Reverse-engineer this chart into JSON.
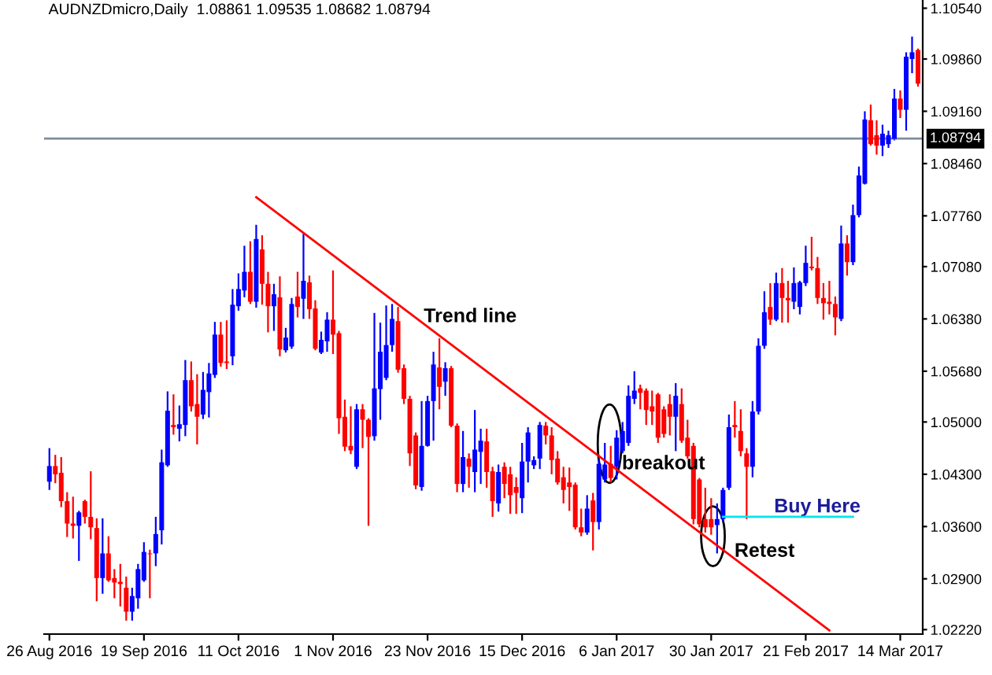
{
  "chart_data": {
    "type": "candlestick",
    "title": "AUDNZDmicro,Daily  1.08861 1.09535 1.08682 1.08794",
    "colors": [
      "#0000ff",
      "#ff0000",
      "#ff0000",
      "#ff0000",
      "#ff0000",
      "#0000ff",
      "#ff0000",
      "#ff0000",
      "#ff0000",
      "#0000ff",
      "#ff0000",
      "#ff0000",
      "#ff0000",
      "#ff0000",
      "#0000ff",
      "#0000ff",
      "#0000ff",
      "#ff0000",
      "#0000ff",
      "#0000ff",
      "#0000ff",
      "#ff0000",
      "#0000ff",
      "#0000ff",
      "#ff0000",
      "#ff0000",
      "#0000ff",
      "#0000ff",
      "#0000ff",
      "#ff0000",
      "#ff0000",
      "#0000ff",
      "#0000ff",
      "#0000ff",
      "#ff0000",
      "#0000ff",
      "#ff0000",
      "#ff0000",
      "#0000ff",
      "#ff0000",
      "#0000ff",
      "#0000ff",
      "#ff0000",
      "#0000ff",
      "#ff0000",
      "#ff0000",
      "#0000ff",
      "#0000ff",
      "#ff0000",
      "#ff0000",
      "#ff0000",
      "#ff0000",
      "#0000ff",
      "#ff0000",
      "#ff0000",
      "#0000ff",
      "#0000ff",
      "#0000ff",
      "#0000ff",
      "#ff0000",
      "#ff0000",
      "#ff0000",
      "#ff0000",
      "#0000ff",
      "#0000ff",
      "#0000ff",
      "#ff0000",
      "#0000ff",
      "#ff0000",
      "#ff0000",
      "#0000ff",
      "#ff0000",
      "#0000ff",
      "#0000ff",
      "#ff0000",
      "#ff0000",
      "#0000ff",
      "#ff0000",
      "#ff0000",
      "#ff0000",
      "#0000ff",
      "#0000ff",
      "#0000ff",
      "#0000ff",
      "#ff0000",
      "#ff0000",
      "#ff0000",
      "#ff0000",
      "#ff0000",
      "#ff0000",
      "#ff0000",
      "#0000ff",
      "#ff0000",
      "#0000ff",
      "#0000ff",
      "#ff0000",
      "#0000ff",
      "#0000ff",
      "#0000ff",
      "#0000ff",
      "#ff0000",
      "#ff0000",
      "#ff0000",
      "#ff0000",
      "#ff0000",
      "#ff0000",
      "#0000ff",
      "#ff0000",
      "#ff0000",
      "#ff0000",
      "#ff0000",
      "#ff0000",
      "#ff0000",
      "#0000ff",
      "#0000ff",
      "#0000ff",
      "#ff0000",
      "#ff0000",
      "#ff0000",
      "#0000ff",
      "#0000ff",
      "#0000ff",
      "#ff0000",
      "#0000ff",
      "#ff0000",
      "#ff0000",
      "#0000ff",
      "#0000ff",
      "#0000ff",
      "#ff0000",
      "#ff0000",
      "#ff0000",
      "#ff0000",
      "#ff0000",
      "#0000ff",
      "#ff0000",
      "#0000ff",
      "#0000ff",
      "#0000ff",
      "#ff0000",
      "#ff0000",
      "#0000ff",
      "#0000ff",
      "#0000ff",
      "#ff0000",
      "#0000ff",
      "#0000ff",
      "#ff0000"
    ],
    "categories": [
      "26 Aug 2016",
      null,
      null,
      null,
      null,
      null,
      null,
      null,
      null,
      null,
      null,
      null,
      null,
      null,
      null,
      null,
      "19 Sep 2016",
      null,
      null,
      null,
      null,
      null,
      null,
      null,
      null,
      null,
      null,
      null,
      null,
      null,
      null,
      null,
      "11 Oct 2016",
      null,
      null,
      null,
      null,
      null,
      null,
      null,
      null,
      null,
      null,
      null,
      null,
      null,
      null,
      null,
      "1 Nov 2016",
      null,
      null,
      null,
      null,
      null,
      null,
      null,
      null,
      null,
      null,
      null,
      null,
      null,
      null,
      null,
      "23 Nov 2016",
      null,
      null,
      null,
      null,
      null,
      null,
      null,
      null,
      null,
      null,
      null,
      null,
      null,
      null,
      null,
      "15 Dec 2016",
      null,
      null,
      null,
      null,
      null,
      null,
      null,
      null,
      null,
      null,
      null,
      null,
      null,
      null,
      null,
      "6 Jan 2017",
      null,
      null,
      null,
      null,
      null,
      null,
      null,
      null,
      null,
      null,
      null,
      null,
      null,
      null,
      null,
      "30 Jan 2017",
      null,
      null,
      null,
      null,
      null,
      null,
      null,
      null,
      null,
      null,
      null,
      null,
      null,
      null,
      null,
      "21 Feb 2017",
      null,
      null,
      null,
      null,
      null,
      null,
      null,
      null,
      null,
      null,
      null,
      null,
      null,
      null,
      null,
      "14 Mar 2017",
      null,
      null,
      null
    ],
    "ohlc": [
      [
        1.042,
        1.0465,
        1.0409,
        1.0441
      ],
      [
        1.0441,
        1.0456,
        1.0418,
        1.043
      ],
      [
        1.0432,
        1.0453,
        1.0386,
        1.0394
      ],
      [
        1.0394,
        1.0406,
        1.0346,
        1.0364
      ],
      [
        1.0364,
        1.04,
        1.0344,
        1.0361
      ],
      [
        1.0361,
        1.0381,
        1.0314,
        1.0379
      ],
      [
        1.0394,
        1.0396,
        1.0364,
        1.0373
      ],
      [
        1.0373,
        1.0434,
        1.0343,
        1.0359
      ],
      [
        1.0358,
        1.0371,
        1.026,
        1.0291
      ],
      [
        1.0291,
        1.0371,
        1.027,
        1.0324
      ],
      [
        1.0324,
        1.0347,
        1.0286,
        1.0288
      ],
      [
        1.0291,
        1.0303,
        1.0264,
        1.0285
      ],
      [
        1.0286,
        1.031,
        1.0253,
        1.0283
      ],
      [
        1.0278,
        1.0293,
        1.0234,
        1.0246
      ],
      [
        1.0246,
        1.0278,
        1.0234,
        1.0267
      ],
      [
        1.0264,
        1.031,
        1.025,
        1.0303
      ],
      [
        1.0288,
        1.0339,
        1.0286,
        1.0326
      ],
      [
        1.0324,
        1.0329,
        1.0264,
        1.0323
      ],
      [
        1.0324,
        1.0373,
        1.0307,
        1.035
      ],
      [
        1.0355,
        1.0463,
        1.0336,
        1.0446
      ],
      [
        1.0442,
        1.0541,
        1.044,
        1.0515
      ],
      [
        1.0496,
        1.0537,
        1.0483,
        1.0493
      ],
      [
        1.0491,
        1.0522,
        1.0474,
        1.0497
      ],
      [
        1.0496,
        1.0583,
        1.0481,
        1.0556
      ],
      [
        1.0556,
        1.0581,
        1.0514,
        1.0521
      ],
      [
        1.0524,
        1.0564,
        1.047,
        1.0507
      ],
      [
        1.051,
        1.0567,
        1.0504,
        1.0543
      ],
      [
        1.054,
        1.0579,
        1.0506,
        1.0565
      ],
      [
        1.0563,
        1.0634,
        1.0559,
        1.0617
      ],
      [
        1.0617,
        1.0634,
        1.0574,
        1.0579
      ],
      [
        1.0581,
        1.0636,
        1.0571,
        1.0579
      ],
      [
        1.0588,
        1.0678,
        1.0576,
        1.0657
      ],
      [
        1.0655,
        1.0699,
        1.0649,
        1.0678
      ],
      [
        1.0676,
        1.0736,
        1.0667,
        1.0701
      ],
      [
        1.0701,
        1.0742,
        1.0658,
        1.0661
      ],
      [
        1.0661,
        1.0764,
        1.0653,
        1.0745
      ],
      [
        1.0731,
        1.075,
        1.0657,
        1.0685
      ],
      [
        1.0685,
        1.0701,
        1.062,
        1.0655
      ],
      [
        1.0655,
        1.0685,
        1.0622,
        1.0671
      ],
      [
        1.0667,
        1.0695,
        1.0588,
        1.0597
      ],
      [
        1.0596,
        1.0626,
        1.0593,
        1.0613
      ],
      [
        1.0601,
        1.0666,
        1.0598,
        1.0658
      ],
      [
        1.0668,
        1.0701,
        1.064,
        1.0654
      ],
      [
        1.0665,
        1.0752,
        1.0638,
        1.0689
      ],
      [
        1.0687,
        1.0696,
        1.0638,
        1.0651
      ],
      [
        1.0652,
        1.0663,
        1.0596,
        1.0598
      ],
      [
        1.0593,
        1.0621,
        1.0591,
        1.061
      ],
      [
        1.0608,
        1.0647,
        1.0594,
        1.0637
      ],
      [
        1.0637,
        1.0703,
        1.0591,
        1.0617
      ],
      [
        1.0619,
        1.0622,
        1.0484,
        1.0505
      ],
      [
        1.0507,
        1.053,
        1.0461,
        1.0467
      ],
      [
        1.0468,
        1.0521,
        1.0457,
        1.0462
      ],
      [
        1.044,
        1.0524,
        1.0437,
        1.0517
      ],
      [
        1.0517,
        1.0524,
        1.0465,
        1.0503
      ],
      [
        1.0503,
        1.0505,
        1.0361,
        1.048
      ],
      [
        1.0481,
        1.0646,
        1.0475,
        1.0545
      ],
      [
        1.0544,
        1.0633,
        1.0503,
        1.0594
      ],
      [
        1.0559,
        1.0656,
        1.0556,
        1.0603
      ],
      [
        1.0603,
        1.0658,
        1.0594,
        1.0638
      ],
      [
        1.0635,
        1.0654,
        1.0566,
        1.057
      ],
      [
        1.0572,
        1.0577,
        1.0524,
        1.0531
      ],
      [
        1.0531,
        1.0535,
        1.0441,
        1.0458
      ],
      [
        1.0482,
        1.0486,
        1.041,
        1.0415
      ],
      [
        1.0413,
        1.0528,
        1.0408,
        1.0468
      ],
      [
        1.0468,
        1.0535,
        1.0467,
        1.0528
      ],
      [
        1.0528,
        1.0594,
        1.0475,
        1.0577
      ],
      [
        1.0573,
        1.0612,
        1.0517,
        1.0547
      ],
      [
        1.0554,
        1.058,
        1.0535,
        1.0572
      ],
      [
        1.0572,
        1.0575,
        1.0493,
        1.0495
      ],
      [
        1.0495,
        1.0498,
        1.0406,
        1.0417
      ],
      [
        1.0417,
        1.0488,
        1.0406,
        1.0453
      ],
      [
        1.0451,
        1.0458,
        1.0412,
        1.044
      ],
      [
        1.0433,
        1.0516,
        1.0406,
        1.0463
      ],
      [
        1.046,
        1.0491,
        1.0417,
        1.0475
      ],
      [
        1.0474,
        1.0491,
        1.0412,
        1.0433
      ],
      [
        1.0434,
        1.044,
        1.0373,
        1.0394
      ],
      [
        1.0391,
        1.0443,
        1.038,
        1.0433
      ],
      [
        1.044,
        1.0446,
        1.0398,
        1.0417
      ],
      [
        1.043,
        1.044,
        1.0377,
        1.0402
      ],
      [
        1.0413,
        1.0426,
        1.0377,
        1.0405
      ],
      [
        1.0398,
        1.0472,
        1.0378,
        1.0447
      ],
      [
        1.0447,
        1.0493,
        1.0419,
        1.0486
      ],
      [
        1.0442,
        1.0454,
        1.0437,
        1.0449
      ],
      [
        1.0451,
        1.05,
        1.0437,
        1.0496
      ],
      [
        1.0495,
        1.05,
        1.047,
        1.0482
      ],
      [
        1.0482,
        1.0493,
        1.043,
        1.0449
      ],
      [
        1.0451,
        1.0461,
        1.0416,
        1.0419
      ],
      [
        1.0426,
        1.044,
        1.0391,
        1.0409
      ],
      [
        1.0419,
        1.0439,
        1.0381,
        1.0413
      ],
      [
        1.0416,
        1.0419,
        1.0356,
        1.0359
      ],
      [
        1.0359,
        1.0384,
        1.0347,
        1.0352
      ],
      [
        1.0352,
        1.0402,
        1.0349,
        1.0384
      ],
      [
        1.0395,
        1.0405,
        1.0328,
        1.0366
      ],
      [
        1.0366,
        1.0451,
        1.0356,
        1.0444
      ],
      [
        1.0423,
        1.0472,
        1.0419,
        1.0443
      ],
      [
        1.0444,
        1.0468,
        1.0419,
        1.0425
      ],
      [
        1.044,
        1.0489,
        1.0423,
        1.0479
      ],
      [
        1.0461,
        1.05,
        1.0458,
        1.0488
      ],
      [
        1.0472,
        1.0549,
        1.0468,
        1.0535
      ],
      [
        1.0531,
        1.0568,
        1.0524,
        1.0542
      ],
      [
        1.0545,
        1.055,
        1.0517,
        1.0539
      ],
      [
        1.0542,
        1.0545,
        1.0496,
        1.0516
      ],
      [
        1.0521,
        1.0542,
        1.0496,
        1.0514
      ],
      [
        1.0537,
        1.0539,
        1.0472,
        1.0479
      ],
      [
        1.0517,
        1.0521,
        1.0479,
        1.0484
      ],
      [
        1.0524,
        1.0537,
        1.0482,
        1.0507
      ],
      [
        1.0507,
        1.0552,
        1.0461,
        1.0535
      ],
      [
        1.0524,
        1.0545,
        1.0472,
        1.0475
      ],
      [
        1.0479,
        1.0503,
        1.0451,
        1.0454
      ],
      [
        1.0468,
        1.0472,
        1.0363,
        1.037
      ],
      [
        1.0423,
        1.0425,
        1.0359,
        1.0363
      ],
      [
        1.037,
        1.0412,
        1.0352,
        1.0359
      ],
      [
        1.037,
        1.0398,
        1.0349,
        1.0359
      ],
      [
        1.0362,
        1.0391,
        1.0324,
        1.037
      ],
      [
        1.037,
        1.0412,
        1.0367,
        1.0409
      ],
      [
        1.0412,
        1.051,
        1.0409,
        1.0493
      ],
      [
        1.0496,
        1.0528,
        1.0479,
        1.0493
      ],
      [
        1.0488,
        1.0517,
        1.0454,
        1.0461
      ],
      [
        1.0458,
        1.0465,
        1.037,
        1.044
      ],
      [
        1.044,
        1.0528,
        1.0426,
        1.0514
      ],
      [
        1.0514,
        1.0612,
        1.051,
        1.0602
      ],
      [
        1.0602,
        1.0675,
        1.0598,
        1.0647
      ],
      [
        1.0654,
        1.0686,
        1.063,
        1.0637
      ],
      [
        1.0637,
        1.07,
        1.0635,
        1.0686
      ],
      [
        1.0686,
        1.0706,
        1.0633,
        1.0666
      ],
      [
        1.0666,
        1.0689,
        1.0633,
        1.0663
      ],
      [
        1.0661,
        1.0707,
        1.0651,
        1.0686
      ],
      [
        1.0654,
        1.0689,
        1.0644,
        1.0687
      ],
      [
        1.0686,
        1.0736,
        1.0682,
        1.0713
      ],
      [
        1.0708,
        1.0748,
        1.0703,
        1.0706
      ],
      [
        1.0706,
        1.0721,
        1.0658,
        1.0666
      ],
      [
        1.0666,
        1.0686,
        1.0637,
        1.0659
      ],
      [
        1.0661,
        1.0689,
        1.0644,
        1.0658
      ],
      [
        1.0658,
        1.0668,
        1.0616,
        1.064
      ],
      [
        1.0638,
        1.0763,
        1.0635,
        1.0739
      ],
      [
        1.0739,
        1.075,
        1.0696,
        1.0714
      ],
      [
        1.0714,
        1.0791,
        1.071,
        1.0777
      ],
      [
        1.0777,
        1.0842,
        1.0774,
        1.083
      ],
      [
        1.0819,
        1.0916,
        1.0818,
        1.0905
      ],
      [
        1.0904,
        1.0925,
        1.087,
        1.0872
      ],
      [
        1.0884,
        1.0904,
        1.0858,
        1.087
      ],
      [
        1.087,
        1.0898,
        1.0856,
        1.0886
      ],
      [
        1.0872,
        1.089,
        1.0867,
        1.0884
      ],
      [
        1.0879,
        1.0946,
        1.0877,
        1.0933
      ],
      [
        1.0933,
        1.0944,
        1.0907,
        1.0918
      ],
      [
        1.0918,
        1.0995,
        1.089,
        1.0989
      ],
      [
        1.0986,
        1.1016,
        1.0967,
        1.0995
      ],
      [
        1.0998,
        1.1,
        1.0949,
        1.0953
      ]
    ],
    "series": [
      {
        "type": "line",
        "color": "#ff0000",
        "values": [
          null,
          null,
          null,
          null,
          null,
          null,
          null,
          null,
          null,
          null,
          null,
          null,
          null,
          null,
          null,
          null,
          null,
          null,
          null,
          null,
          null,
          null,
          null,
          null,
          null,
          null,
          null,
          null,
          null,
          null,
          null,
          null,
          null,
          null,
          null,
          1.0801,
          null,
          null,
          null,
          null,
          null,
          null,
          null,
          null,
          null,
          null,
          null,
          null,
          null,
          null,
          null,
          null,
          null,
          null,
          null,
          null,
          null,
          null,
          null,
          null,
          null,
          null,
          null,
          null,
          null,
          null,
          null,
          null,
          null,
          null,
          null,
          null,
          null,
          null,
          null,
          null,
          null,
          null,
          null,
          null,
          null,
          null,
          null,
          null,
          null,
          null,
          null,
          null,
          null,
          null,
          null,
          null,
          null,
          null,
          null,
          null,
          null,
          null,
          null,
          null,
          null,
          null,
          null,
          null,
          null,
          null,
          null,
          null,
          null,
          null,
          null,
          null,
          null,
          null,
          null,
          null,
          null,
          null,
          null,
          null,
          null,
          null,
          null,
          null,
          null,
          null,
          null,
          null,
          null,
          null,
          null,
          null,
          1.0221,
          null,
          null,
          null,
          null,
          null,
          null,
          null,
          null,
          null,
          null,
          null,
          null,
          null,
          null,
          null
        ]
      },
      {
        "type": "line",
        "color": "#00e5ee",
        "values": [
          null,
          null,
          null,
          null,
          null,
          null,
          null,
          null,
          null,
          null,
          null,
          null,
          null,
          null,
          null,
          null,
          null,
          null,
          null,
          null,
          null,
          null,
          null,
          null,
          null,
          null,
          null,
          null,
          null,
          null,
          null,
          null,
          null,
          null,
          null,
          null,
          null,
          null,
          null,
          null,
          null,
          null,
          null,
          null,
          null,
          null,
          null,
          null,
          null,
          null,
          null,
          null,
          null,
          null,
          null,
          null,
          null,
          null,
          null,
          null,
          null,
          null,
          null,
          null,
          null,
          null,
          null,
          null,
          null,
          null,
          null,
          null,
          null,
          null,
          null,
          null,
          null,
          null,
          null,
          null,
          null,
          null,
          null,
          null,
          null,
          null,
          null,
          null,
          null,
          null,
          null,
          null,
          null,
          null,
          null,
          null,
          null,
          null,
          null,
          null,
          null,
          null,
          null,
          null,
          null,
          null,
          null,
          null,
          null,
          null,
          null,
          null,
          null,
          null,
          1.0373,
          null,
          null,
          null,
          null,
          null,
          null,
          null,
          null,
          null,
          null,
          null,
          null,
          null,
          null,
          null,
          null,
          null,
          null,
          null,
          null,
          null,
          1.0373,
          null,
          null,
          null,
          null,
          null,
          null,
          null,
          null,
          null,
          null,
          null
        ]
      }
    ],
    "ylim": [
      1.0216,
      1.1065
    ],
    "yticks": [
      {
        "value": 1.1054,
        "label": "1.10540"
      },
      {
        "value": 1.0986,
        "label": "1.09860"
      },
      {
        "value": 1.0916,
        "label": "1.09160"
      },
      {
        "value": 1.0846,
        "label": "1.08460"
      },
      {
        "value": 1.0776,
        "label": "1.07760"
      },
      {
        "value": 1.0708,
        "label": "1.07080"
      },
      {
        "value": 1.0638,
        "label": "1.06380"
      },
      {
        "value": 1.0568,
        "label": "1.05680"
      },
      {
        "value": 1.05,
        "label": "1.05000"
      },
      {
        "value": 1.043,
        "label": "1.04300"
      },
      {
        "value": 1.036,
        "label": "1.03600"
      },
      {
        "value": 1.029,
        "label": "1.02900"
      },
      {
        "value": 1.0222,
        "label": "1.02220"
      }
    ],
    "ref_lines": [
      {
        "axis": "y",
        "value": 1.08794,
        "label": "1.08794",
        "color": "#7f8c9a"
      }
    ],
    "annotations": [
      "Trend line",
      "breakout",
      "Buy Here",
      "Retest"
    ],
    "grid": false,
    "legend": false
  }
}
